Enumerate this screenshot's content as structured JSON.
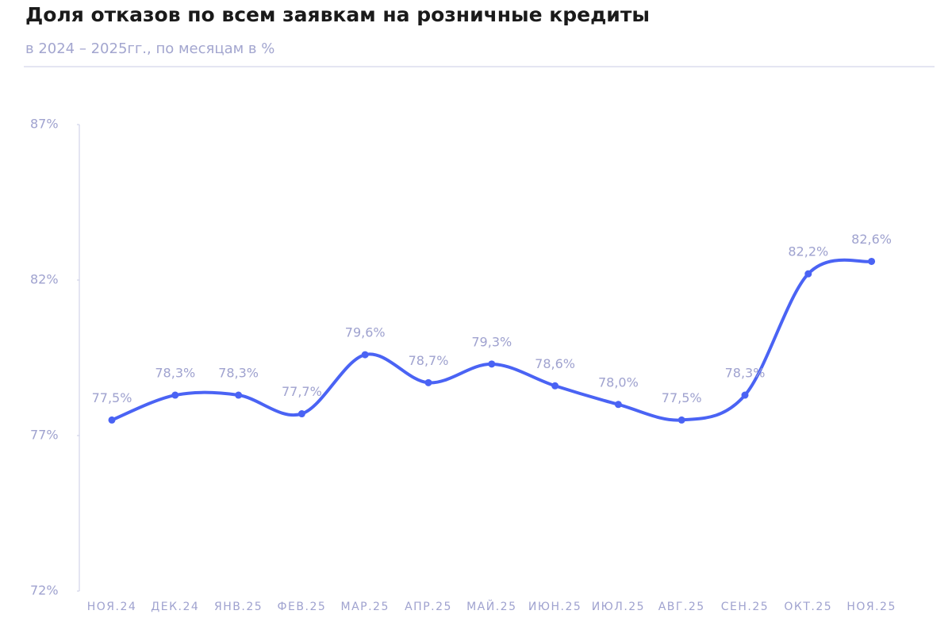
{
  "chart_data": {
    "type": "line",
    "title": "Доля отказов по всем заявкам на розничные кредиты",
    "subtitle": "в 2024 – 2025гг., по месяцам в %",
    "categories": [
      "НОЯ.24",
      "ДЕК.24",
      "ЯНВ.25",
      "ФЕВ.25",
      "МАР.25",
      "АПР.25",
      "МАЙ.25",
      "ИЮН.25",
      "ИЮЛ.25",
      "АВГ.25",
      "СЕН.25",
      "ОКТ.25",
      "НОЯ.25"
    ],
    "values": [
      77.5,
      78.3,
      78.3,
      77.7,
      79.6,
      78.7,
      79.3,
      78.6,
      78.0,
      77.5,
      78.3,
      82.2,
      82.6
    ],
    "value_labels": [
      "77,5%",
      "78,3%",
      "78,3%",
      "77,7%",
      "79,6%",
      "78,7%",
      "79,3%",
      "78,6%",
      "78,0%",
      "77,5%",
      "78,3%",
      "82,2%",
      "82,6%"
    ],
    "color": "#4a63f4",
    "ylim": [
      72,
      87
    ],
    "yticks": [
      {
        "value": 72,
        "label": "72%"
      },
      {
        "value": 77,
        "label": "77%"
      },
      {
        "value": 82,
        "label": "82%"
      },
      {
        "value": 87,
        "label": "87%"
      }
    ]
  }
}
